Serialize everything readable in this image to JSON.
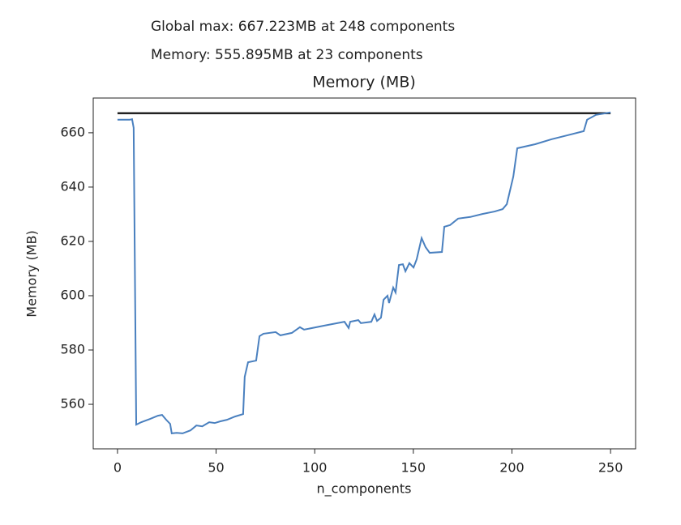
{
  "notes": [
    "Global max: 667.223MB at 248 components",
    "Memory: 555.895MB at 23 components"
  ],
  "chart_data": {
    "type": "line",
    "title": "Memory (MB)",
    "x_label": "n_components",
    "y_label": "Memory (MB)",
    "xlim": [
      -12.3,
      262.7
    ],
    "ylim": [
      543.6,
      672.8
    ],
    "xticks": [
      0,
      50,
      100,
      150,
      200,
      250
    ],
    "yticks": [
      560,
      580,
      600,
      620,
      640,
      660
    ],
    "series": [
      {
        "color": "#222222",
        "x": [
          0,
          250
        ],
        "values": [
          667.223,
          667.223
        ]
      },
      {
        "color": "#4a80bf",
        "x": [
          0,
          6.2,
          7.4,
          8.2,
          9.5,
          12,
          16.4,
          20.5,
          22.6,
          24.7,
          26.7,
          27.5,
          30,
          33,
          37,
          40,
          43,
          46.5,
          49.3,
          52,
          55.5,
          59.6,
          63.7,
          64.5,
          66.2,
          70.3,
          72,
          74,
          80.2,
          82.6,
          88.4,
          92.5,
          94.6,
          104.9,
          115.1,
          117.2,
          118,
          122.1,
          123.4,
          128.7,
          130.3,
          131.6,
          133.6,
          134.9,
          136.9,
          137.7,
          139.8,
          141,
          142.7,
          144.7,
          146,
          148,
          150.1,
          151.7,
          154.2,
          156.2,
          158.3,
          164.5,
          165.7,
          168.6,
          172.7,
          178.9,
          185,
          191.2,
          195.3,
          197.4,
          200.7,
          202.7,
          211.8,
          220,
          228.2,
          236.4,
          238.1,
          242.6,
          250
        ],
        "values": [
          664.8,
          664.8,
          665,
          661.8,
          552.5,
          553.4,
          554.6,
          555.8,
          556.1,
          554.3,
          552.8,
          549.3,
          549.5,
          549.3,
          550.4,
          552.2,
          551.9,
          553.4,
          553.1,
          553.7,
          554.3,
          555.5,
          556.4,
          570.1,
          575.5,
          576.1,
          585.1,
          586,
          586.6,
          585.4,
          586.3,
          588.4,
          587.5,
          589,
          590.4,
          588.1,
          590.4,
          591,
          589.9,
          590.4,
          593.1,
          590.7,
          591.9,
          598.5,
          600,
          597.3,
          603,
          601.2,
          611.3,
          611.6,
          609,
          612,
          610.4,
          613.4,
          621.2,
          617.9,
          615.8,
          616.1,
          625.4,
          626,
          628.4,
          629,
          630.1,
          631,
          631.9,
          633.7,
          643.9,
          654.3,
          655.8,
          657.6,
          659.1,
          660.6,
          664.8,
          666.6,
          667.5
        ]
      }
    ]
  }
}
